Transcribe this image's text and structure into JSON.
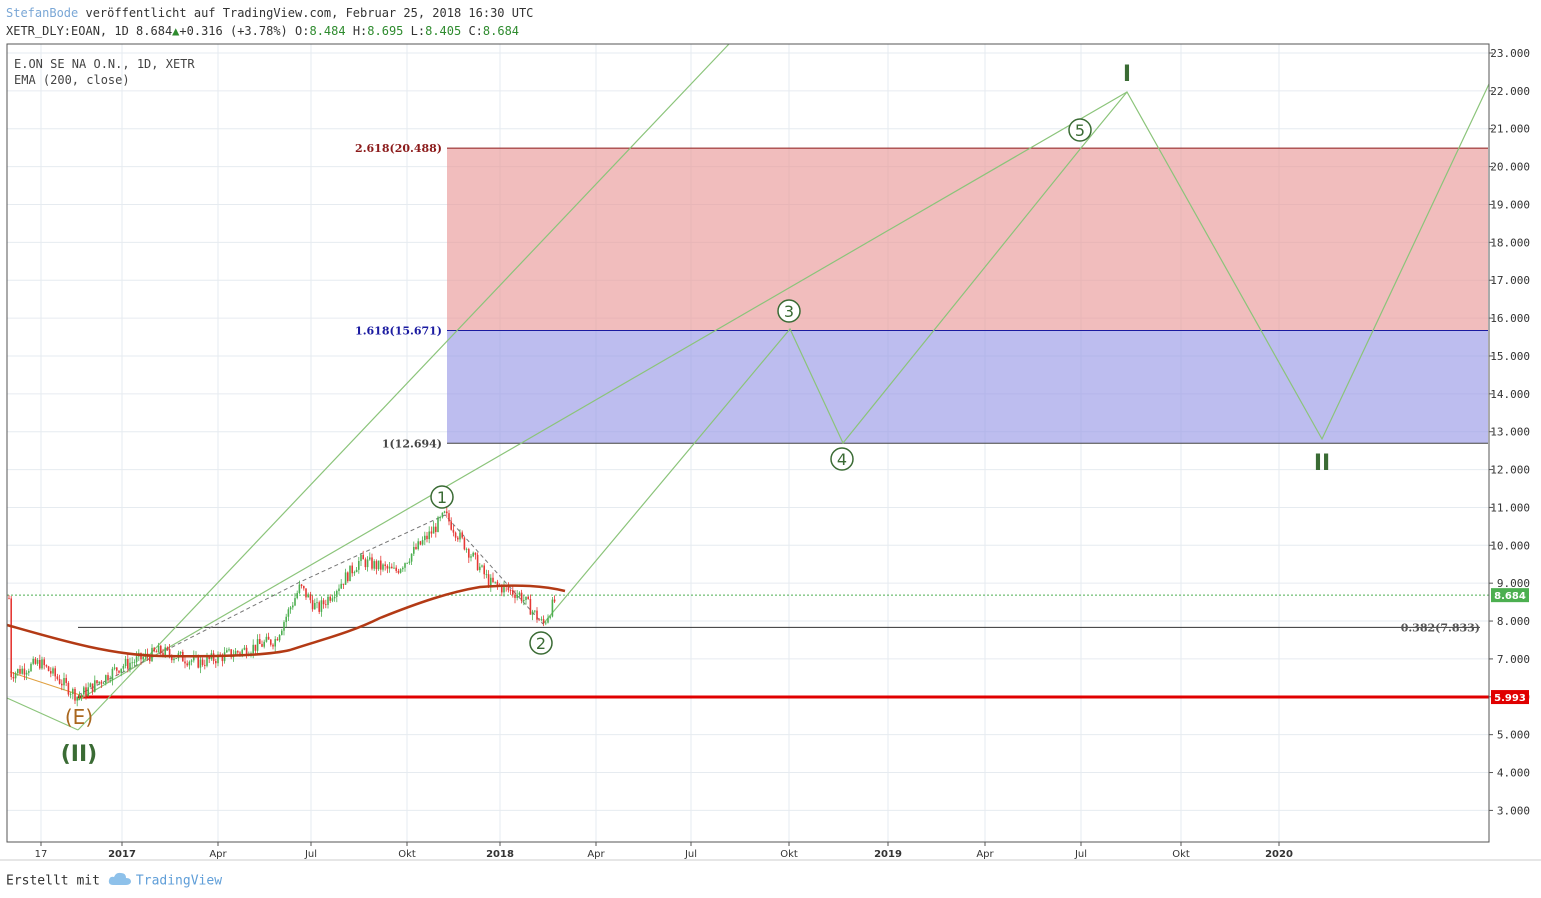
{
  "header": {
    "author": "StefanBode",
    "published_text": "veröffentlicht auf TradingView.com, Februar 25, 2018 16:30 UTC",
    "symbol_line": "XETR_DLY:EOAN, 1D 8.684",
    "change": "+0.316 (+3.78%)",
    "o_label": "O:",
    "o_value": "8.484",
    "h_label": "H:",
    "h_value": "8.695",
    "l_label": "L:",
    "l_value": "8.405",
    "c_label": "C:",
    "c_value": "8.684"
  },
  "legend": {
    "title": "E.ON SE NA O.N., 1D, XETR",
    "indicator": "EMA (200, close)"
  },
  "footer": {
    "created_with": "Erstellt mit",
    "brand": "TradingView"
  },
  "colors": {
    "grid": "#e6ebf0",
    "candle_up": "#4caf50",
    "candle_down": "#e53935",
    "ema": "#b33a15",
    "wave_line": "#8bc47a",
    "fib_red_fill": "#e99a9a",
    "fib_blue_fill": "#9a9ae6",
    "support_red": "#e00000",
    "wave_label": "#3a6b34",
    "e_label": "#a9671f"
  },
  "chart_data": {
    "type": "line",
    "title": "E.ON SE NA O.N., 1D, XETR",
    "ylim": [
      2.2,
      23.2
    ],
    "y_ticks": [
      "23.000",
      "22.000",
      "21.000",
      "20.000",
      "19.000",
      "18.000",
      "17.000",
      "16.000",
      "15.000",
      "14.000",
      "13.000",
      "12.000",
      "11.000",
      "10.000",
      "9.000",
      "8.000",
      "7.000",
      "6.000",
      "5.000",
      "4.000",
      "3.000"
    ],
    "x_ticks": [
      "17",
      "2017",
      "Apr",
      "Jul",
      "Okt",
      "2018",
      "Apr",
      "Jul",
      "Okt",
      "2019",
      "Apr",
      "Jul",
      "Okt",
      "2020"
    ],
    "last_price": {
      "label": "8.684",
      "value": 8.684
    },
    "support": {
      "label": "5.993",
      "value": 5.993
    },
    "fib_levels": [
      {
        "label": "2.618(20.488)",
        "value": 20.488
      },
      {
        "label": "1.618(15.671)",
        "value": 15.671
      },
      {
        "label": "1(12.694)",
        "value": 12.694
      },
      {
        "label": "0.382(7.833)",
        "value": 7.833
      }
    ],
    "wave_labels": [
      {
        "label": "(E)",
        "value": 5.15
      },
      {
        "label": "(II)",
        "value": 5.15
      },
      {
        "label": "1",
        "value": 10.8
      },
      {
        "label": "2",
        "value": 7.9
      },
      {
        "label": "3",
        "value": 15.7
      },
      {
        "label": "4",
        "value": 12.7
      },
      {
        "label": "5",
        "value": 20.5
      },
      {
        "label": "I",
        "value": 22.0
      },
      {
        "label": "II",
        "value": 12.8
      }
    ]
  }
}
